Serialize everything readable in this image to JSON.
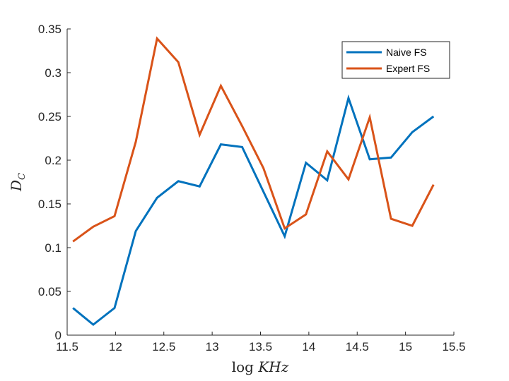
{
  "chart_data": {
    "type": "line",
    "xlabel": "log KHz",
    "ylabel": "D_C",
    "xlim": [
      11.5,
      15.5
    ],
    "ylim": [
      0,
      0.35
    ],
    "xticks": [
      "11.5",
      "12",
      "12.5",
      "13",
      "13.5",
      "14",
      "14.5",
      "15",
      "15.5"
    ],
    "yticks": [
      "0",
      "0.05",
      "0.1",
      "0.15",
      "0.2",
      "0.25",
      "0.3",
      "0.35"
    ],
    "grid": false,
    "legend_position": "top-right",
    "x": [
      11.56,
      11.77,
      11.99,
      12.21,
      12.43,
      12.65,
      12.87,
      13.09,
      13.31,
      13.53,
      13.75,
      13.97,
      14.19,
      14.41,
      14.63,
      14.85,
      15.07,
      15.29
    ],
    "series": [
      {
        "name": "Naive FS",
        "color": "#0072BD",
        "values": [
          0.031,
          0.012,
          0.031,
          0.119,
          0.157,
          0.176,
          0.17,
          0.218,
          0.215,
          0.164,
          0.113,
          0.197,
          0.177,
          0.271,
          0.201,
          0.203,
          0.232,
          0.25
        ]
      },
      {
        "name": "Expert FS",
        "color": "#D95319",
        "values": [
          0.107,
          0.124,
          0.136,
          0.221,
          0.339,
          0.312,
          0.229,
          0.285,
          0.239,
          0.191,
          0.122,
          0.138,
          0.21,
          0.178,
          0.249,
          0.133,
          0.125,
          0.172
        ]
      }
    ]
  }
}
